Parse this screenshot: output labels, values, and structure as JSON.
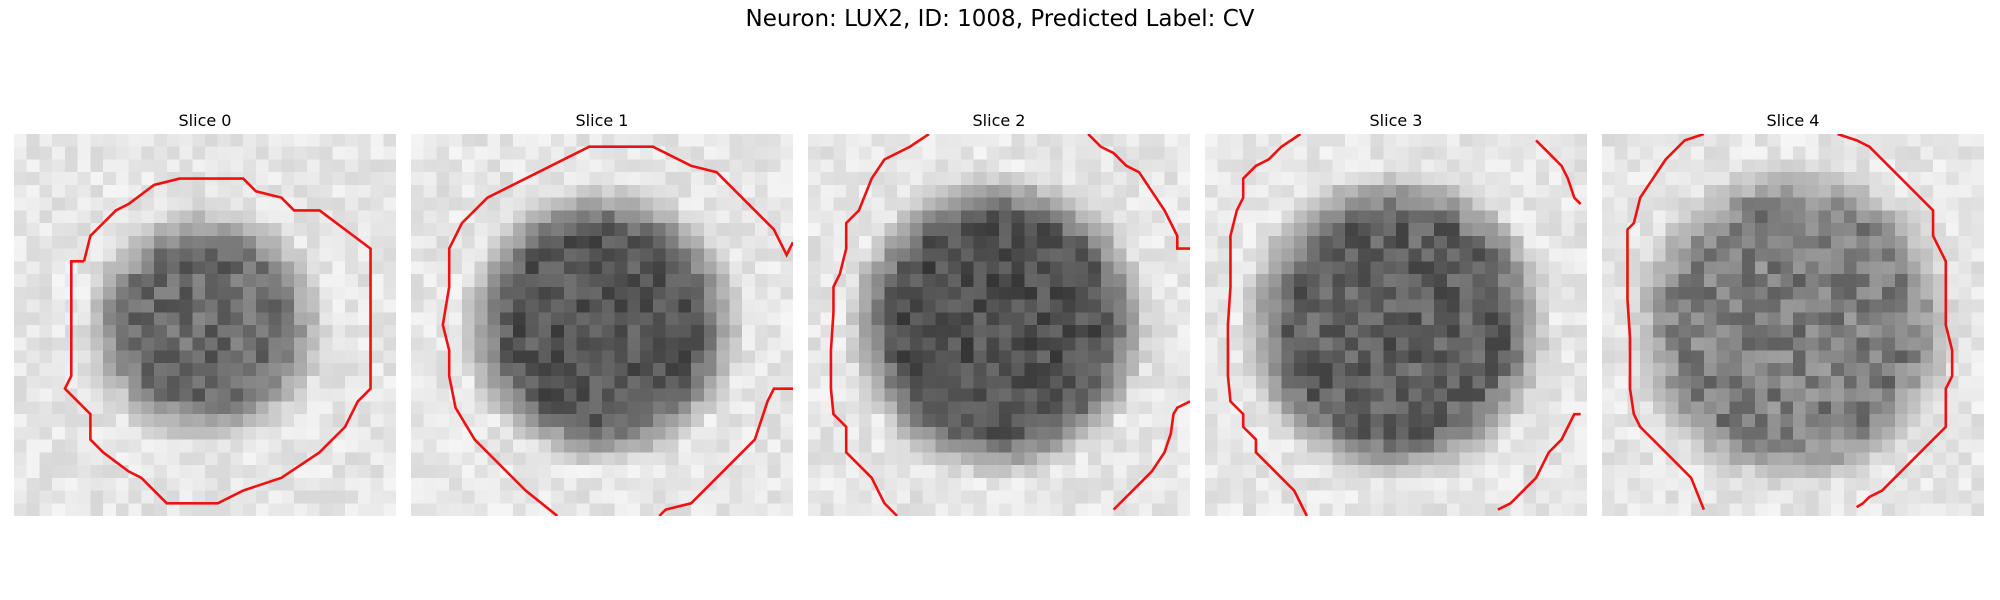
{
  "figure": {
    "suptitle": "Neuron: LUX2, ID: 1008, Predicted Label: CV",
    "grid_size": 30,
    "contour_color": "#ee1111"
  },
  "panels": [
    {
      "title": "Slice 0",
      "base_level": 105,
      "blob_radius": 0.4,
      "contrast": 0.9,
      "seed": 11
    },
    {
      "title": "Slice 1",
      "base_level": 85,
      "blob_radius": 0.5,
      "contrast": 0.8,
      "seed": 23
    },
    {
      "title": "Slice 2",
      "base_level": 80,
      "blob_radius": 0.56,
      "contrast": 0.8,
      "seed": 37
    },
    {
      "title": "Slice 3",
      "base_level": 95,
      "blob_radius": 0.58,
      "contrast": 0.9,
      "seed": 41
    },
    {
      "title": "Slice 4",
      "base_level": 125,
      "blob_radius": 0.62,
      "contrast": 1.0,
      "seed": 53
    }
  ]
}
